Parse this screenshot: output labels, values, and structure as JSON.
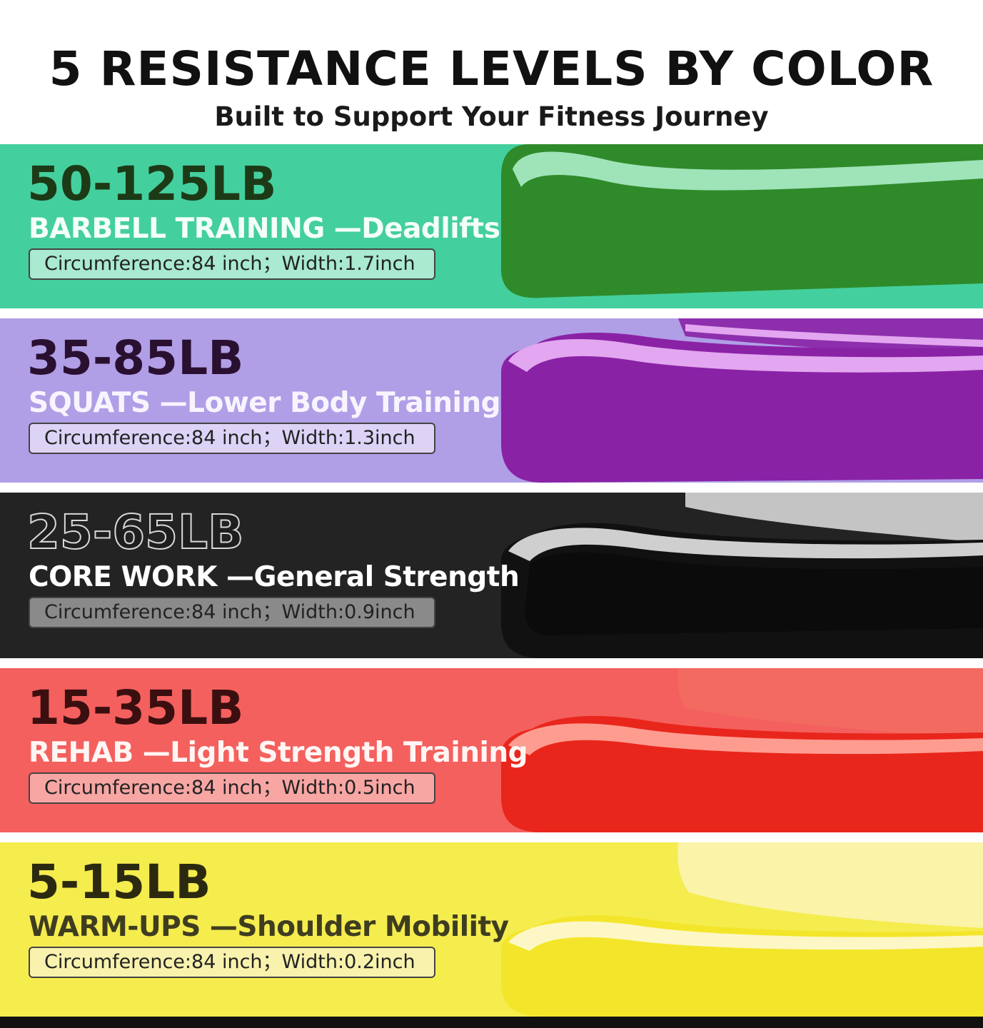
{
  "header": {
    "title": "5 RESISTANCE LEVELS BY COLOR",
    "subtitle": "Built to Support Your Fitness Journey"
  },
  "bands": [
    {
      "weight": "50-125LB",
      "usage": "BARBELL TRAINING —Deadlifts",
      "spec": "Circumference:84 inch；Width:1.7inch",
      "colors": {
        "background": "#44cf9e",
        "band": "#2f8a2a",
        "band_edge": "#9fe3b8",
        "weight_text": "#1d3a16",
        "usage_text": "#f3fff8",
        "spec_fill": "#a9ead0"
      }
    },
    {
      "weight": "35-85LB",
      "usage": "SQUATS —Lower Body Training",
      "spec": "Circumference:84 inch；Width:1.3inch",
      "colors": {
        "background": "#b09fe6",
        "band": "#8a22a6",
        "band_edge": "#e3a6f0",
        "weight_text": "#2a1030",
        "usage_text": "#f8f4ff",
        "spec_fill": "#ddd3f7"
      }
    },
    {
      "weight": "25-65LB",
      "usage": "CORE WORK —General Strength",
      "spec": "Circumference:84 inch；Width:0.9inch",
      "colors": {
        "background": "#232323",
        "band": "#111111",
        "band_edge": "#cfcfcf",
        "weight_text": "#1e1e1e",
        "usage_text": "#ffffff",
        "spec_fill": "#8a8a8a"
      }
    },
    {
      "weight": "15-35LB",
      "usage": "REHAB —Light Strength Training",
      "spec": "Circumference:84 inch；Width:0.5inch",
      "colors": {
        "background": "#f4605e",
        "band": "#e9261c",
        "band_edge": "#ff9c90",
        "weight_text": "#3b0f0f",
        "usage_text": "#fff6f4",
        "spec_fill": "#f8a6a4"
      }
    },
    {
      "weight": "5-15LB",
      "usage": "WARM-UPS —Shoulder Mobility",
      "spec": "Circumference:84 inch；Width:0.2inch",
      "colors": {
        "background": "#f5ec4e",
        "band": "#f3e62a",
        "band_edge": "#fdf7c6",
        "weight_text": "#2b2a10",
        "usage_text": "#3e3d20",
        "spec_fill": "#f8f2ad"
      }
    }
  ]
}
